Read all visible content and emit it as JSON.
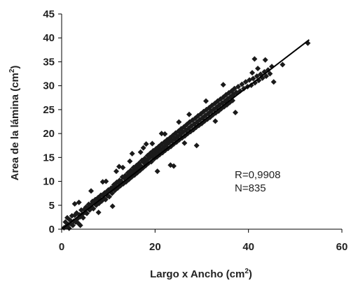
{
  "chart_data": {
    "type": "scatter",
    "title": "",
    "xlabel": {
      "text": "Largo x Ancho (cm",
      "superscript": "2",
      "suffix": ")"
    },
    "ylabel": {
      "text": "Area de la lámina (cm",
      "superscript": "2",
      "suffix": ")"
    },
    "xlim": [
      0,
      60
    ],
    "ylim": [
      0,
      45
    ],
    "x_ticks": [
      "0",
      "20",
      "40",
      "60"
    ],
    "y_ticks": [
      "0",
      "5",
      "10",
      "15",
      "20",
      "25",
      "30",
      "35",
      "40",
      "45"
    ],
    "grid": false,
    "legend": "none",
    "marker": "diamond",
    "marker_color": "#1a1a1a",
    "fit_line": {
      "x": [
        0,
        53
      ],
      "y": [
        0,
        39.6
      ],
      "color": "#000000"
    },
    "annotations": [
      "R=0,9908",
      "N=835"
    ],
    "points": [
      [
        0.5,
        0.3
      ],
      [
        0.8,
        1.5
      ],
      [
        1.0,
        0.6
      ],
      [
        1.2,
        2.4
      ],
      [
        1.4,
        1.0
      ],
      [
        1.6,
        0.2
      ],
      [
        1.8,
        1.9
      ],
      [
        2.0,
        1.1
      ],
      [
        2.2,
        2.8
      ],
      [
        2.4,
        0.8
      ],
      [
        2.6,
        1.7
      ],
      [
        2.8,
        2.9
      ],
      [
        3.0,
        1.5
      ],
      [
        3.2,
        3.4
      ],
      [
        3.4,
        2.2
      ],
      [
        3.6,
        1.2
      ],
      [
        3.8,
        3.0
      ],
      [
        4.0,
        2.6
      ],
      [
        4.2,
        4.0
      ],
      [
        4.4,
        3.1
      ],
      [
        4.6,
        2.4
      ],
      [
        4.8,
        4.1
      ],
      [
        5.0,
        3.5
      ],
      [
        5.2,
        4.6
      ],
      [
        5.4,
        3.3
      ],
      [
        5.6,
        4.4
      ],
      [
        5.8,
        5.2
      ],
      [
        6.0,
        4.0
      ],
      [
        6.2,
        5.1
      ],
      [
        6.4,
        4.6
      ],
      [
        6.6,
        5.8
      ],
      [
        6.8,
        4.3
      ],
      [
        7.0,
        5.5
      ],
      [
        7.2,
        6.2
      ],
      [
        7.4,
        5.0
      ],
      [
        7.6,
        6.0
      ],
      [
        7.8,
        6.6
      ],
      [
        8.0,
        5.4
      ],
      [
        8.2,
        6.5
      ],
      [
        8.4,
        7.1
      ],
      [
        8.6,
        5.9
      ],
      [
        8.8,
        7.2
      ],
      [
        9.0,
        6.4
      ],
      [
        9.2,
        7.6
      ],
      [
        9.4,
        6.2
      ],
      [
        9.6,
        7.8
      ],
      [
        9.8,
        7.0
      ],
      [
        10.0,
        8.2
      ],
      [
        10.2,
        6.8
      ],
      [
        10.4,
        7.9
      ],
      [
        10.6,
        8.6
      ],
      [
        10.8,
        7.5
      ],
      [
        11.0,
        8.7
      ],
      [
        11.2,
        9.3
      ],
      [
        11.4,
        8.1
      ],
      [
        11.6,
        9.0
      ],
      [
        11.8,
        9.8
      ],
      [
        12.0,
        8.6
      ],
      [
        12.2,
        9.6
      ],
      [
        12.4,
        10.2
      ],
      [
        12.6,
        9.1
      ],
      [
        12.8,
        10.0
      ],
      [
        13.0,
        10.9
      ],
      [
        13.2,
        9.5
      ],
      [
        13.4,
        10.7
      ],
      [
        13.6,
        11.2
      ],
      [
        13.8,
        9.9
      ],
      [
        14.0,
        11.0
      ],
      [
        14.2,
        11.8
      ],
      [
        14.4,
        10.4
      ],
      [
        14.6,
        11.5
      ],
      [
        14.8,
        12.3
      ],
      [
        15.0,
        10.9
      ],
      [
        15.2,
        12.0
      ],
      [
        15.4,
        12.9
      ],
      [
        15.6,
        11.3
      ],
      [
        15.8,
        12.4
      ],
      [
        16.0,
        13.3
      ],
      [
        16.2,
        11.8
      ],
      [
        16.4,
        12.9
      ],
      [
        16.6,
        13.8
      ],
      [
        16.8,
        12.3
      ],
      [
        17.0,
        13.2
      ],
      [
        17.2,
        14.4
      ],
      [
        17.4,
        12.8
      ],
      [
        17.6,
        13.9
      ],
      [
        17.8,
        14.8
      ],
      [
        18.0,
        13.3
      ],
      [
        18.2,
        14.4
      ],
      [
        18.4,
        15.4
      ],
      [
        18.6,
        13.8
      ],
      [
        18.8,
        14.9
      ],
      [
        19.0,
        15.9
      ],
      [
        19.2,
        14.1
      ],
      [
        19.4,
        15.3
      ],
      [
        19.6,
        16.4
      ],
      [
        19.8,
        14.7
      ],
      [
        20.0,
        15.8
      ],
      [
        20.2,
        16.8
      ],
      [
        20.4,
        15.1
      ],
      [
        20.6,
        16.2
      ],
      [
        20.8,
        17.3
      ],
      [
        21.0,
        15.6
      ],
      [
        21.2,
        16.7
      ],
      [
        21.4,
        17.8
      ],
      [
        21.6,
        16.0
      ],
      [
        21.8,
        17.1
      ],
      [
        22.0,
        18.2
      ],
      [
        22.2,
        16.5
      ],
      [
        22.4,
        17.6
      ],
      [
        22.6,
        18.7
      ],
      [
        22.8,
        16.9
      ],
      [
        23.0,
        18.1
      ],
      [
        23.2,
        19.1
      ],
      [
        23.4,
        17.3
      ],
      [
        23.6,
        18.5
      ],
      [
        23.8,
        19.6
      ],
      [
        24.0,
        17.8
      ],
      [
        24.2,
        18.9
      ],
      [
        24.4,
        20.1
      ],
      [
        24.6,
        18.2
      ],
      [
        24.8,
        19.4
      ],
      [
        25.0,
        20.5
      ],
      [
        25.2,
        18.7
      ],
      [
        25.4,
        19.8
      ],
      [
        25.6,
        21.0
      ],
      [
        25.8,
        19.1
      ],
      [
        26.0,
        20.3
      ],
      [
        26.2,
        21.4
      ],
      [
        26.4,
        19.5
      ],
      [
        26.6,
        20.7
      ],
      [
        26.8,
        21.9
      ],
      [
        27.0,
        20.0
      ],
      [
        27.2,
        21.1
      ],
      [
        27.4,
        22.4
      ],
      [
        27.6,
        20.4
      ],
      [
        27.8,
        21.6
      ],
      [
        28.0,
        22.8
      ],
      [
        28.2,
        20.8
      ],
      [
        28.4,
        22.0
      ],
      [
        28.6,
        23.2
      ],
      [
        28.8,
        21.3
      ],
      [
        29.0,
        22.4
      ],
      [
        29.2,
        23.7
      ],
      [
        29.4,
        21.7
      ],
      [
        29.6,
        22.9
      ],
      [
        29.8,
        24.1
      ],
      [
        30.0,
        22.1
      ],
      [
        30.2,
        23.3
      ],
      [
        30.4,
        24.6
      ],
      [
        30.6,
        22.6
      ],
      [
        30.8,
        23.8
      ],
      [
        31.0,
        25.0
      ],
      [
        31.2,
        23.0
      ],
      [
        31.4,
        24.2
      ],
      [
        31.6,
        25.4
      ],
      [
        31.8,
        23.4
      ],
      [
        32.0,
        24.7
      ],
      [
        32.2,
        25.9
      ],
      [
        32.4,
        23.9
      ],
      [
        32.6,
        25.1
      ],
      [
        32.8,
        26.3
      ],
      [
        33.0,
        24.3
      ],
      [
        33.2,
        25.5
      ],
      [
        33.4,
        26.8
      ],
      [
        33.6,
        24.7
      ],
      [
        33.8,
        26.0
      ],
      [
        34.0,
        27.2
      ],
      [
        34.2,
        25.2
      ],
      [
        34.4,
        26.4
      ],
      [
        34.6,
        27.6
      ],
      [
        34.8,
        25.6
      ],
      [
        35.0,
        26.8
      ],
      [
        35.2,
        28.1
      ],
      [
        35.4,
        26.0
      ],
      [
        35.6,
        27.3
      ],
      [
        35.8,
        28.5
      ],
      [
        36.0,
        26.5
      ],
      [
        36.2,
        27.7
      ],
      [
        36.4,
        28.9
      ],
      [
        36.6,
        26.9
      ],
      [
        36.8,
        28.2
      ],
      [
        37.0,
        29.4
      ],
      [
        37.4,
        28.6
      ],
      [
        37.8,
        29.8
      ],
      [
        38.2,
        28.9
      ],
      [
        38.6,
        30.3
      ],
      [
        39.0,
        29.4
      ],
      [
        39.4,
        30.8
      ],
      [
        39.8,
        29.8
      ],
      [
        40.2,
        31.2
      ],
      [
        40.6,
        30.1
      ],
      [
        41.0,
        31.5
      ],
      [
        41.4,
        30.6
      ],
      [
        41.8,
        32.0
      ],
      [
        42.2,
        31.1
      ],
      [
        42.6,
        32.4
      ],
      [
        43.0,
        31.6
      ],
      [
        43.4,
        32.9
      ],
      [
        43.8,
        32.0
      ],
      [
        44.2,
        33.3
      ],
      [
        44.6,
        32.5
      ],
      [
        45.0,
        34.0
      ],
      [
        45.4,
        30.8
      ],
      [
        43.6,
        35.4
      ],
      [
        42.0,
        33.6
      ],
      [
        40.8,
        32.7
      ],
      [
        37.2,
        24.4
      ],
      [
        34.6,
        30.2
      ],
      [
        47.3,
        34.4
      ],
      [
        52.7,
        38.9
      ],
      [
        41.3,
        35.6
      ],
      [
        6.3,
        8.0
      ],
      [
        8.8,
        9.9
      ],
      [
        11.7,
        12.1
      ],
      [
        18.1,
        17.8
      ],
      [
        16.9,
        16.1
      ],
      [
        21.4,
        20.0
      ],
      [
        23.3,
        13.4
      ],
      [
        2.8,
        5.3
      ],
      [
        4.0,
        0.8
      ],
      [
        7.9,
        3.5
      ],
      [
        10.9,
        4.8
      ],
      [
        20.5,
        12.1
      ],
      [
        28.9,
        17.5
      ],
      [
        3.7,
        5.6
      ],
      [
        12.3,
        13.1
      ],
      [
        15.1,
        15.8
      ],
      [
        19.4,
        17.9
      ],
      [
        9.5,
        10.0
      ],
      [
        25.1,
        22.4
      ],
      [
        27.3,
        24.0
      ],
      [
        30.9,
        26.8
      ],
      [
        24.0,
        13.2
      ],
      [
        22.1,
        19.9
      ],
      [
        14.6,
        14.2
      ],
      [
        13.1,
        12.9
      ],
      [
        17.5,
        17.0
      ],
      [
        26.3,
        18.0
      ],
      [
        32.9,
        22.6
      ]
    ]
  }
}
